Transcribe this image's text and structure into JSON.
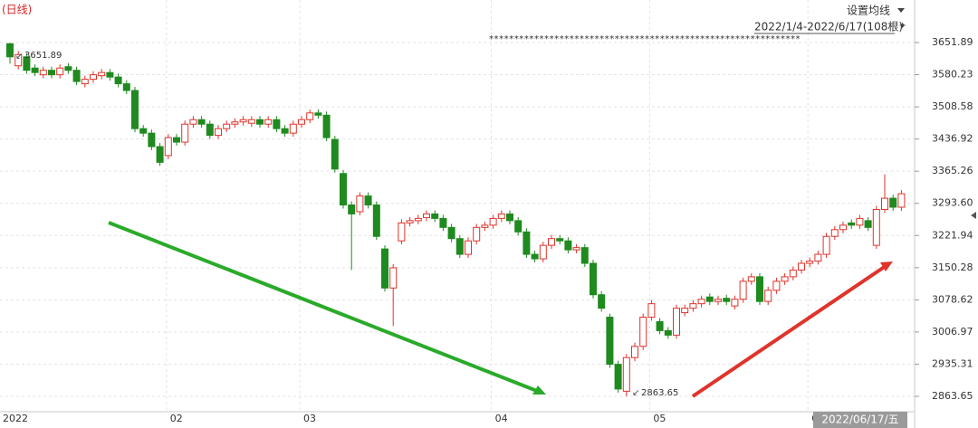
{
  "chart_data": {
    "type": "candlestick",
    "title": "(日线)",
    "ma_button": "设置均线",
    "range_label": "2022/1/4-2022/6/17(108根)",
    "marker_row": "**************************************************************",
    "cursor_date": "2022/06/17/五",
    "up_color": "#e0332b",
    "down_color": "#1f8a1f",
    "grid": true,
    "ylim": [
      2829.4,
      3746.6
    ],
    "yticks": [
      3651.89,
      3580.23,
      3508.58,
      3436.92,
      3365.26,
      {
        "value": 3293.6,
        "label": "3293.60"
      },
      3221.94,
      3150.28,
      3078.62,
      3006.97,
      2935.31,
      2863.65
    ],
    "categories": [
      "2022",
      null,
      null,
      null,
      null,
      null,
      null,
      null,
      null,
      null,
      null,
      null,
      null,
      null,
      null,
      null,
      null,
      null,
      null,
      "02",
      null,
      null,
      null,
      null,
      null,
      null,
      null,
      null,
      null,
      null,
      null,
      null,
      null,
      null,
      null,
      "03",
      null,
      null,
      null,
      null,
      null,
      null,
      null,
      null,
      null,
      null,
      null,
      null,
      null,
      null,
      null,
      null,
      null,
      null,
      null,
      null,
      null,
      null,
      "04",
      null,
      null,
      null,
      null,
      null,
      null,
      null,
      null,
      null,
      null,
      null,
      null,
      null,
      null,
      null,
      null,
      null,
      null,
      "05",
      null,
      null,
      null,
      null,
      null,
      null,
      null,
      null,
      null,
      null,
      null,
      null,
      null,
      null,
      null,
      null,
      null,
      null,
      "06",
      null,
      null,
      null,
      null,
      null,
      null,
      null,
      null,
      null,
      null,
      null
    ],
    "open": [
      3649,
      3600,
      3620,
      3595,
      3580,
      3590,
      3580,
      3598,
      3590,
      3560,
      3570,
      3578,
      3585,
      3575,
      3560,
      3545,
      3460,
      3450,
      3420,
      3400,
      3440,
      3430,
      3470,
      3480,
      3470,
      3445,
      3460,
      3470,
      3475,
      3472,
      3480,
      3470,
      3480,
      3460,
      3450,
      3470,
      3480,
      3495,
      3490,
      3436,
      3360,
      3290,
      3275,
      3310,
      3290,
      3192,
      3105,
      3210,
      3250,
      3255,
      3262,
      3270,
      3260,
      3240,
      3215,
      3180,
      3210,
      3240,
      3245,
      3260,
      3270,
      3255,
      3230,
      3180,
      3170,
      3200,
      3215,
      3210,
      3190,
      3195,
      3160,
      3090,
      3040,
      2935,
      2875,
      2950,
      2975,
      3040,
      3030,
      3010,
      3000,
      3050,
      3060,
      3070,
      3085,
      3075,
      3082,
      3065,
      3080,
      3120,
      3130,
      3075,
      3100,
      3120,
      3130,
      3145,
      3160,
      3165,
      3180,
      3220,
      3235,
      3250,
      3245,
      3255,
      3200,
      3280,
      3305,
      3285
    ],
    "high": [
      3651.89,
      3633,
      3628,
      3603,
      3598,
      3598,
      3603,
      3606,
      3598,
      3578,
      3588,
      3593,
      3593,
      3583,
      3568,
      3553,
      3468,
      3458,
      3428,
      3448,
      3448,
      3478,
      3488,
      3488,
      3478,
      3468,
      3478,
      3483,
      3488,
      3488,
      3488,
      3488,
      3488,
      3468,
      3478,
      3488,
      3503,
      3503,
      3498,
      3444,
      3368,
      3298,
      3318,
      3318,
      3298,
      3200,
      3158,
      3258,
      3263,
      3268,
      3278,
      3278,
      3268,
      3248,
      3223,
      3218,
      3248,
      3253,
      3268,
      3278,
      3278,
      3263,
      3238,
      3188,
      3208,
      3223,
      3223,
      3218,
      3203,
      3203,
      3168,
      3098,
      3048,
      2943,
      2958,
      2983,
      3048,
      3078,
      3038,
      3018,
      3068,
      3068,
      3078,
      3088,
      3093,
      3088,
      3090,
      3088,
      3128,
      3138,
      3138,
      3108,
      3128,
      3138,
      3153,
      3168,
      3173,
      3188,
      3228,
      3243,
      3253,
      3258,
      3268,
      3263,
      3288,
      3358,
      3313,
      3323
    ],
    "low": [
      3605,
      3592,
      3582,
      3577,
      3572,
      3572,
      3572,
      3582,
      3557,
      3552,
      3562,
      3570,
      3567,
      3552,
      3537,
      3452,
      3442,
      3412,
      3377,
      3392,
      3422,
      3422,
      3462,
      3462,
      3437,
      3437,
      3452,
      3462,
      3467,
      3464,
      3462,
      3462,
      3452,
      3442,
      3442,
      3462,
      3472,
      3482,
      3432,
      3362,
      3282,
      3145,
      3267,
      3282,
      3212,
      3097,
      3020,
      3202,
      3242,
      3247,
      3254,
      3252,
      3232,
      3207,
      3172,
      3172,
      3202,
      3232,
      3237,
      3252,
      3247,
      3222,
      3172,
      3162,
      3162,
      3192,
      3202,
      3182,
      3182,
      3152,
      3082,
      3052,
      2927,
      2872,
      2863.65,
      2942,
      2967,
      3032,
      3002,
      2992,
      2992,
      3042,
      3052,
      3062,
      3067,
      3067,
      3067,
      3057,
      3072,
      3112,
      3067,
      3067,
      3092,
      3112,
      3122,
      3137,
      3152,
      3157,
      3172,
      3212,
      3227,
      3237,
      3237,
      3232,
      3192,
      3272,
      3277,
      3277
    ],
    "close": [
      3620,
      3625,
      3590,
      3585,
      3590,
      3580,
      3595,
      3590,
      3565,
      3570,
      3580,
      3585,
      3575,
      3560,
      3545,
      3460,
      3450,
      3420,
      3385,
      3440,
      3430,
      3470,
      3480,
      3470,
      3445,
      3460,
      3470,
      3475,
      3480,
      3480,
      3470,
      3480,
      3460,
      3450,
      3470,
      3480,
      3495,
      3490,
      3440,
      3370,
      3290,
      3270,
      3310,
      3290,
      3220,
      3105,
      3150,
      3250,
      3255,
      3260,
      3270,
      3260,
      3240,
      3215,
      3180,
      3210,
      3240,
      3245,
      3260,
      3270,
      3255,
      3230,
      3180,
      3170,
      3200,
      3215,
      3210,
      3190,
      3195,
      3160,
      3090,
      3060,
      2935,
      2880,
      2950,
      2975,
      3040,
      3070,
      3010,
      3000,
      3060,
      3060,
      3070,
      3080,
      3075,
      3080,
      3075,
      3080,
      3120,
      3130,
      3075,
      3100,
      3120,
      3130,
      3145,
      3160,
      3165,
      3180,
      3220,
      3235,
      3245,
      3245,
      3260,
      3240,
      3280,
      3305,
      3285,
      3315
    ]
  }
}
